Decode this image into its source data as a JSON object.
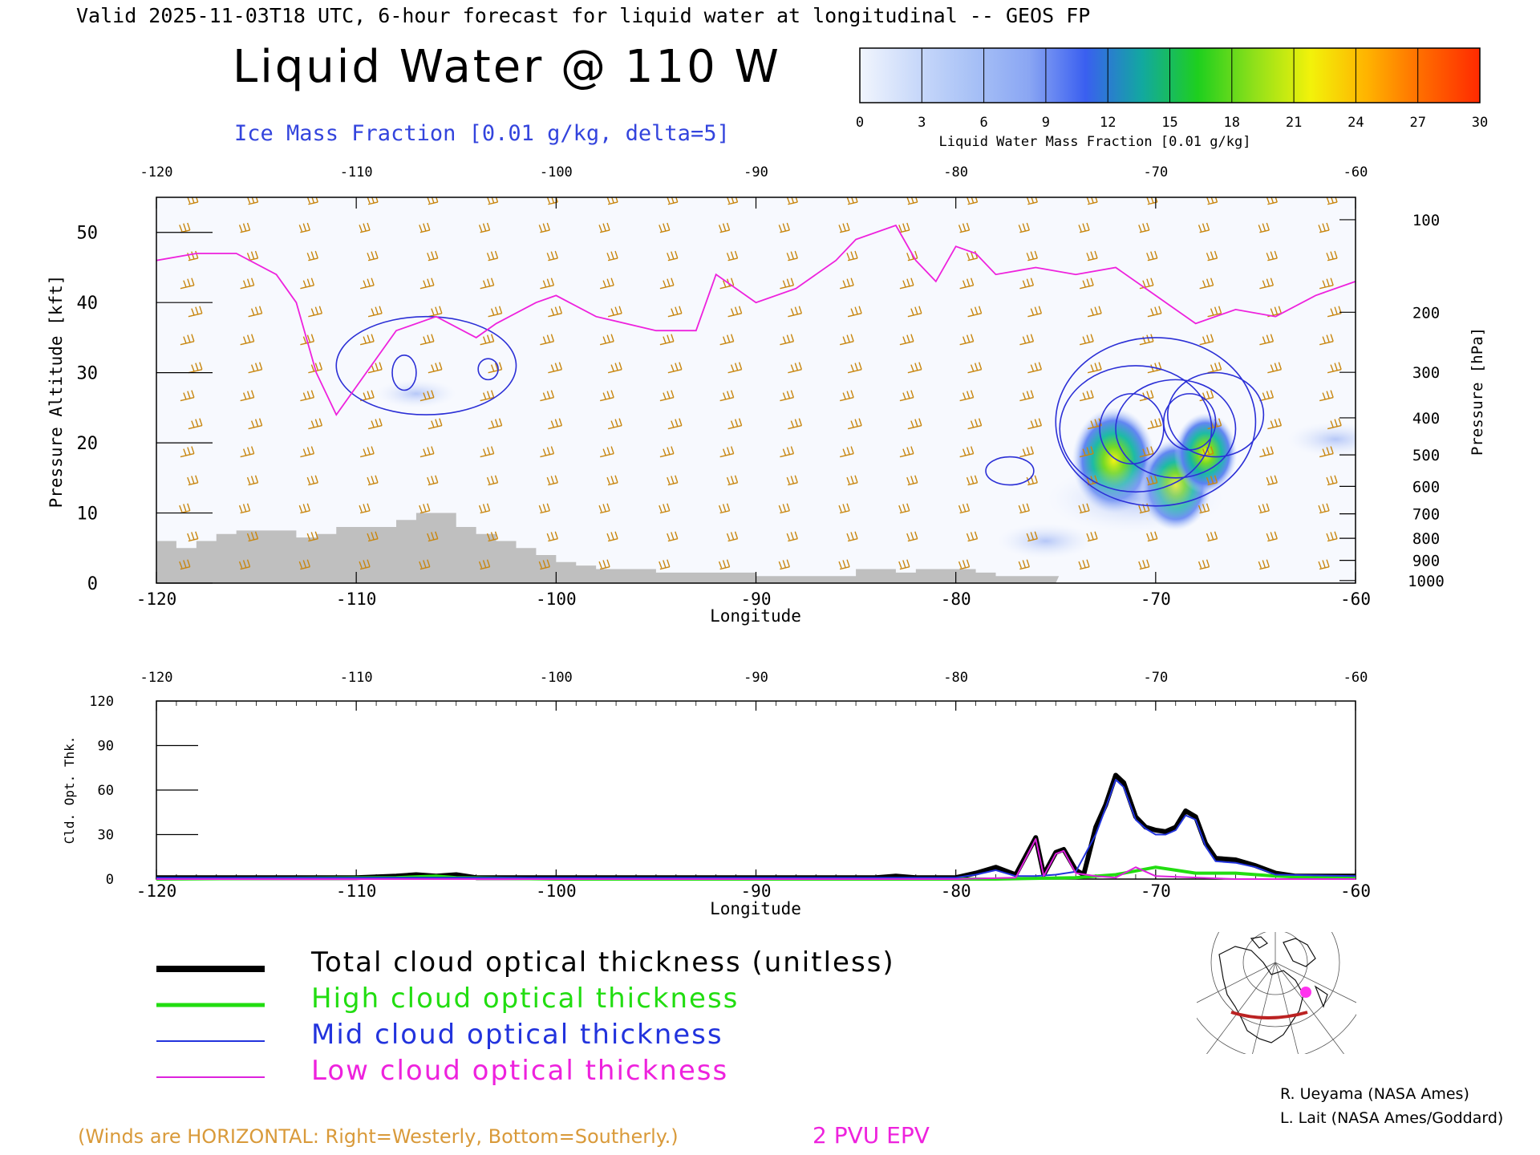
{
  "header": {
    "valid_line": "Valid 2025-11-03T18 UTC, 6-hour forecast for liquid water at longitudinal -- GEOS FP",
    "title": "Liquid Water @ 110 W",
    "subtitle": "Ice Mass Fraction [0.01 g/kg, delta=5]"
  },
  "colorbar": {
    "ticks": [
      "0",
      "3",
      "6",
      "9",
      "12",
      "15",
      "18",
      "21",
      "24",
      "27",
      "30"
    ],
    "label": "Liquid Water Mass Fraction [0.01 g/kg]",
    "colors": [
      "#f1f5fd",
      "#c9d9fa",
      "#a8c1f6",
      "#8aa6f3",
      "#3a5ff0",
      "#12a8a0",
      "#1ecf1e",
      "#8fe01a",
      "#f2f20a",
      "#ffb300",
      "#ff6a00",
      "#ff2a00"
    ]
  },
  "colors": {
    "ice_contour": "#2b2fd6",
    "epv": "#ee22dd",
    "wind_barb": "#c8860f",
    "terrain": "#bfbfbf",
    "total": "#000000",
    "high": "#22dd11",
    "mid": "#2233dd",
    "low": "#dd22dd"
  },
  "chart_data": [
    {
      "type": "heatmap",
      "name": "cross-section",
      "xlabel": "Longitude",
      "ylabel_left": "Pressure Altitude [kft]",
      "ylabel_right": "Pressure [hPa]",
      "xlim": [
        -120,
        -60
      ],
      "ylim": [
        0,
        55
      ],
      "x_ticks": [
        "-120",
        "-110",
        "-100",
        "-90",
        "-80",
        "-70",
        "-60"
      ],
      "y_ticks_left": [
        "0",
        "10",
        "20",
        "30",
        "40",
        "50"
      ],
      "y_ticks_right": [
        "100",
        "200",
        "300",
        "400",
        "500",
        "600",
        "700",
        "800",
        "900",
        "1000"
      ],
      "liquid_water_blobs": [
        {
          "lon": -72.1,
          "kft": 17.5,
          "value": 20
        },
        {
          "lon": -69.0,
          "kft": 14.0,
          "value": 16
        },
        {
          "lon": -71.0,
          "kft": 12.0,
          "value": 8
        },
        {
          "lon": -67.5,
          "kft": 18.5,
          "value": 13
        },
        {
          "lon": -75.5,
          "kft": 6.0,
          "value": 3
        },
        {
          "lon": -61.0,
          "kft": 20.5,
          "value": 3
        },
        {
          "lon": -107.0,
          "kft": 27.0,
          "value": 2
        }
      ],
      "terrain_kft": [
        [
          -120,
          6
        ],
        [
          -119,
          5
        ],
        [
          -118,
          6
        ],
        [
          -117,
          7
        ],
        [
          -116,
          7.5
        ],
        [
          -114,
          7.5
        ],
        [
          -113,
          6.5
        ],
        [
          -112,
          7
        ],
        [
          -111,
          8
        ],
        [
          -109,
          8
        ],
        [
          -108,
          9
        ],
        [
          -107,
          10
        ],
        [
          -105.5,
          10
        ],
        [
          -105,
          8
        ],
        [
          -104,
          7
        ],
        [
          -103,
          6
        ],
        [
          -102,
          5
        ],
        [
          -101,
          4
        ],
        [
          -100,
          3
        ],
        [
          -99,
          2.5
        ],
        [
          -98,
          2
        ],
        [
          -95,
          1.5
        ],
        [
          -90,
          1
        ],
        [
          -86,
          1
        ],
        [
          -85,
          2
        ],
        [
          -83,
          1.5
        ],
        [
          -82,
          2
        ],
        [
          -80,
          2
        ],
        [
          -79,
          1.5
        ],
        [
          -78,
          1
        ],
        [
          -75,
          1
        ]
      ],
      "epv_2pvu_kft": [
        [
          -120,
          46
        ],
        [
          -118,
          47
        ],
        [
          -116,
          47
        ],
        [
          -114,
          44
        ],
        [
          -113,
          40
        ],
        [
          -112,
          30
        ],
        [
          -111,
          24
        ],
        [
          -110,
          28
        ],
        [
          -109,
          32
        ],
        [
          -108,
          36
        ],
        [
          -106,
          38
        ],
        [
          -104,
          35
        ],
        [
          -103,
          37
        ],
        [
          -101,
          40
        ],
        [
          -100,
          41
        ],
        [
          -98,
          38
        ],
        [
          -95,
          36
        ],
        [
          -93,
          36
        ],
        [
          -92,
          44
        ],
        [
          -90,
          40
        ],
        [
          -88,
          42
        ],
        [
          -86,
          46
        ],
        [
          -85,
          49
        ],
        [
          -83,
          51
        ],
        [
          -82,
          46
        ],
        [
          -81,
          43
        ],
        [
          -80,
          48
        ],
        [
          -79,
          47
        ],
        [
          -78,
          44
        ],
        [
          -76,
          45
        ],
        [
          -74,
          44
        ],
        [
          -72,
          45
        ],
        [
          -70,
          41
        ],
        [
          -68,
          37
        ],
        [
          -66,
          39
        ],
        [
          -64,
          38
        ],
        [
          -62,
          41
        ],
        [
          -60,
          43
        ]
      ],
      "ice_contours": [
        {
          "lon": -106.5,
          "kft": 31,
          "rx": 4.5,
          "ry": 7,
          "level": 5
        },
        {
          "lon": -107.6,
          "kft": 30,
          "rx": 0.6,
          "ry": 2.5,
          "level": 10
        },
        {
          "lon": -103.4,
          "kft": 30.5,
          "rx": 0.5,
          "ry": 1.5,
          "level": 5
        },
        {
          "lon": -70.0,
          "kft": 23,
          "rx": 5,
          "ry": 12,
          "level": 5
        },
        {
          "lon": -71.0,
          "kft": 22,
          "rx": 3.8,
          "ry": 9,
          "level": 10
        },
        {
          "lon": -69.0,
          "kft": 22,
          "rx": 3,
          "ry": 7,
          "level": 15
        },
        {
          "lon": -71.2,
          "kft": 22,
          "rx": 1.6,
          "ry": 5,
          "level": 20
        },
        {
          "lon": -68.3,
          "kft": 23,
          "rx": 1.3,
          "ry": 4,
          "level": 20
        },
        {
          "lon": -67.0,
          "kft": 24,
          "rx": 2.4,
          "ry": 6,
          "level": 10
        },
        {
          "lon": -77.3,
          "kft": 16,
          "rx": 1.2,
          "ry": 2,
          "level": 5
        }
      ]
    },
    {
      "type": "line",
      "name": "cloud-optical-thickness",
      "xlabel": "Longitude",
      "ylabel": "Cld. Opt. Thk.",
      "xlim": [
        -120,
        -60
      ],
      "ylim": [
        0,
        120
      ],
      "x_ticks": [
        "-120",
        "-110",
        "-100",
        "-90",
        "-80",
        "-70",
        "-60"
      ],
      "y_ticks": [
        "0",
        "30",
        "60",
        "90",
        "120"
      ],
      "series": [
        {
          "name": "Total cloud optical thickness (unitless)",
          "key": "total",
          "width": 6,
          "points": [
            [
              -120,
              1
            ],
            [
              -110,
              1
            ],
            [
              -108,
              2
            ],
            [
              -107,
              3
            ],
            [
              -106,
              2
            ],
            [
              -105,
              3
            ],
            [
              -104,
              1
            ],
            [
              -90,
              1
            ],
            [
              -84,
              1
            ],
            [
              -83,
              2
            ],
            [
              -82,
              1
            ],
            [
              -80,
              1
            ],
            [
              -79,
              4
            ],
            [
              -78,
              8
            ],
            [
              -77,
              3
            ],
            [
              -76,
              28
            ],
            [
              -75.6,
              3
            ],
            [
              -75,
              18
            ],
            [
              -74.6,
              20
            ],
            [
              -74,
              6
            ],
            [
              -73.6,
              3
            ],
            [
              -73,
              35
            ],
            [
              -72.5,
              50
            ],
            [
              -72,
              70
            ],
            [
              -71.6,
              65
            ],
            [
              -71,
              42
            ],
            [
              -70.5,
              35
            ],
            [
              -70,
              33
            ],
            [
              -69.5,
              32
            ],
            [
              -69,
              35
            ],
            [
              -68.5,
              46
            ],
            [
              -68,
              42
            ],
            [
              -67.5,
              24
            ],
            [
              -67,
              14
            ],
            [
              -66,
              13
            ],
            [
              -65,
              9
            ],
            [
              -64,
              4
            ],
            [
              -63,
              2
            ],
            [
              -60,
              2
            ]
          ]
        },
        {
          "name": "High cloud optical thickness",
          "key": "high",
          "width": 4,
          "points": [
            [
              -120,
              0
            ],
            [
              -108,
              1
            ],
            [
              -106,
              2
            ],
            [
              -105,
              1
            ],
            [
              -100,
              0
            ],
            [
              -78,
              0
            ],
            [
              -74,
              1
            ],
            [
              -72,
              3
            ],
            [
              -70,
              8
            ],
            [
              -69,
              6
            ],
            [
              -68,
              4
            ],
            [
              -66,
              4
            ],
            [
              -64,
              2
            ],
            [
              -62,
              1
            ],
            [
              -60,
              1
            ]
          ]
        },
        {
          "name": "Mid cloud optical thickness",
          "key": "mid",
          "width": 2,
          "points": [
            [
              -120,
              1
            ],
            [
              -90,
              1
            ],
            [
              -80,
              1
            ],
            [
              -79,
              3
            ],
            [
              -78,
              6
            ],
            [
              -77,
              2
            ],
            [
              -76,
              2
            ],
            [
              -75,
              3
            ],
            [
              -74,
              5
            ],
            [
              -73,
              30
            ],
            [
              -72.5,
              48
            ],
            [
              -72,
              67
            ],
            [
              -71.6,
              62
            ],
            [
              -71,
              40
            ],
            [
              -70.5,
              34
            ],
            [
              -70,
              30
            ],
            [
              -69.5,
              30
            ],
            [
              -69,
              33
            ],
            [
              -68.5,
              43
            ],
            [
              -68,
              40
            ],
            [
              -67.5,
              22
            ],
            [
              -67,
              12
            ],
            [
              -66,
              11
            ],
            [
              -65,
              8
            ],
            [
              -64,
              3
            ],
            [
              -60,
              2
            ]
          ]
        },
        {
          "name": "Low cloud optical thickness",
          "key": "low",
          "width": 2,
          "points": [
            [
              -120,
              0
            ],
            [
              -80,
              0
            ],
            [
              -77,
              1
            ],
            [
              -76,
              27
            ],
            [
              -75.6,
              2
            ],
            [
              -75,
              17
            ],
            [
              -74.6,
              19
            ],
            [
              -74,
              4
            ],
            [
              -73,
              2
            ],
            [
              -72,
              1
            ],
            [
              -71,
              8
            ],
            [
              -70,
              2
            ],
            [
              -66,
              0
            ],
            [
              -60,
              0
            ]
          ]
        }
      ]
    }
  ],
  "legend": [
    {
      "label": "Total cloud optical thickness (unitless)",
      "key": "total"
    },
    {
      "label": "High cloud optical thickness",
      "key": "high"
    },
    {
      "label": "Mid cloud optical thickness",
      "key": "mid"
    },
    {
      "label": "Low cloud optical thickness",
      "key": "low"
    }
  ],
  "footer": {
    "winds_note": "(Winds are HORIZONTAL: Right=Westerly, Bottom=Southerly.)",
    "epv_label": "2 PVU EPV",
    "credit_1": "R. Ueyama (NASA Ames)",
    "credit_2": "L. Lait (NASA Ames/Goddard)"
  },
  "inset_map": {
    "marker_color": "#ff33ee",
    "track_color": "#bb2222"
  }
}
